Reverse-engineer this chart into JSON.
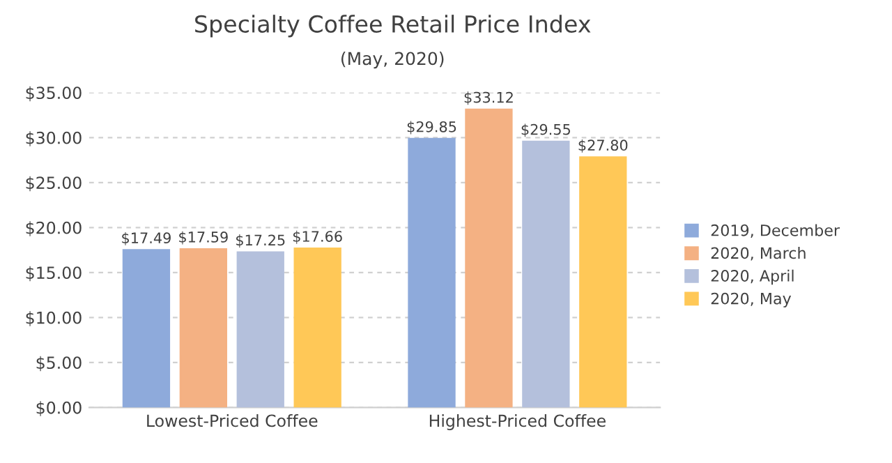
{
  "chart_data": {
    "type": "bar",
    "title": "Specialty Coffee Retail Price Index",
    "subtitle": "(May, 2020)",
    "categories": [
      "Lowest-Priced Coffee",
      "Highest-Priced Coffee"
    ],
    "series": [
      {
        "name": "2019, December",
        "color": "#8eaadb",
        "values": [
          17.49,
          29.85
        ],
        "value_labels": [
          "$17.49",
          "$29.85"
        ]
      },
      {
        "name": "2020, March",
        "color": "#f4b183",
        "values": [
          17.59,
          33.12
        ],
        "value_labels": [
          "$17.59",
          "$33.12"
        ]
      },
      {
        "name": "2020, April",
        "color": "#b4c0dc",
        "values": [
          17.25,
          29.55
        ],
        "value_labels": [
          "$17.25",
          "$29.55"
        ]
      },
      {
        "name": "2020, May",
        "color": "#ffc857",
        "values": [
          17.66,
          27.8
        ],
        "value_labels": [
          "$17.66",
          "$27.80"
        ]
      }
    ],
    "ylim": [
      0,
      35
    ],
    "yticks": [
      {
        "value": 0,
        "label": "$0.00"
      },
      {
        "value": 5,
        "label": "$5.00"
      },
      {
        "value": 10,
        "label": "$10.00"
      },
      {
        "value": 15,
        "label": "$15.00"
      },
      {
        "value": 20,
        "label": "$20.00"
      },
      {
        "value": 25,
        "label": "$25.00"
      },
      {
        "value": 30,
        "label": "$30.00"
      },
      {
        "value": 35,
        "label": "$35.00"
      }
    ],
    "grid": "y",
    "legend": "right"
  }
}
